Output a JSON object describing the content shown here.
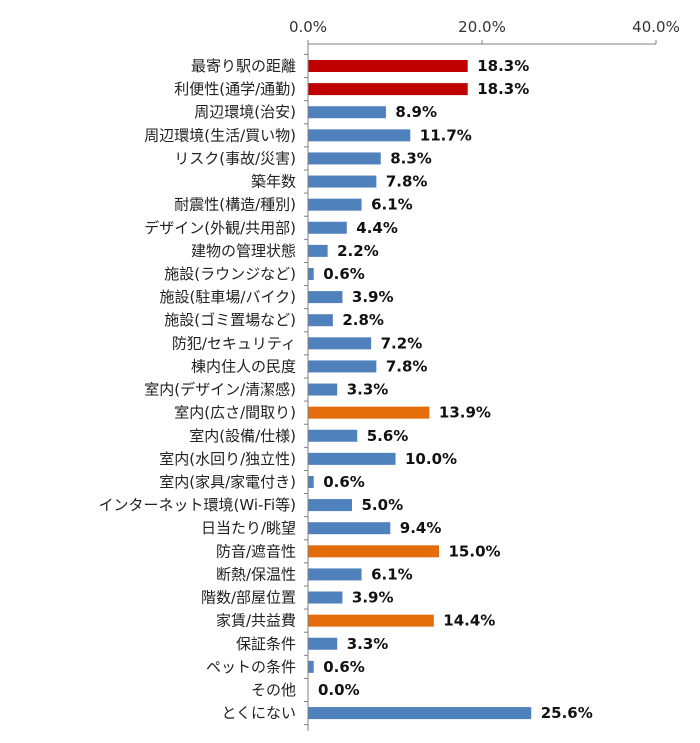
{
  "chart_data": {
    "type": "bar",
    "orientation": "horizontal",
    "title": "",
    "xlabel": "",
    "ylabel": "",
    "xlim": [
      0,
      40
    ],
    "x_ticks": [
      "0.0%",
      "20.0%",
      "40.0%"
    ],
    "x_tick_values": [
      0,
      20,
      40
    ],
    "x_axis_position": "top",
    "grid": false,
    "legend": "none",
    "colors": {
      "red": "#c00000",
      "orange": "#e46c0a",
      "blue": "#4f81bd",
      "axis": "#808080"
    },
    "categories": [
      "最寄り駅の距離",
      "利便性(通学/通勤)",
      "周辺環境(治安)",
      "周辺環境(生活/買い物)",
      "リスク(事故/災害)",
      "築年数",
      "耐震性(構造/種別)",
      "デザイン(外観/共用部)",
      "建物の管理状態",
      "施設(ラウンジなど)",
      "施設(駐車場/バイク)",
      "施設(ゴミ置場など)",
      "防犯/セキュリティ",
      "棟内住人の民度",
      "室内(デザイン/清潔感)",
      "室内(広さ/間取り)",
      "室内(設備/仕様)",
      "室内(水回り/独立性)",
      "室内(家具/家電付き)",
      "インターネット環境(Wi-Fi等)",
      "日当たり/眺望",
      "防音/遮音性",
      "断熱/保温性",
      "階数/部屋位置",
      "家賃/共益費",
      "保証条件",
      "ペットの条件",
      "その他",
      "とくにない"
    ],
    "values": [
      18.3,
      18.3,
      8.9,
      11.7,
      8.3,
      7.8,
      6.1,
      4.4,
      2.2,
      0.6,
      3.9,
      2.8,
      7.2,
      7.8,
      3.3,
      13.9,
      5.6,
      10.0,
      0.6,
      5.0,
      9.4,
      15.0,
      6.1,
      3.9,
      14.4,
      3.3,
      0.6,
      0.0,
      25.6
    ],
    "value_labels": [
      "18.3%",
      "18.3%",
      "8.9%",
      "11.7%",
      "8.3%",
      "7.8%",
      "6.1%",
      "4.4%",
      "2.2%",
      "0.6%",
      "3.9%",
      "2.8%",
      "7.2%",
      "7.8%",
      "3.3%",
      "13.9%",
      "5.6%",
      "10.0%",
      "0.6%",
      "5.0%",
      "9.4%",
      "15.0%",
      "6.1%",
      "3.9%",
      "14.4%",
      "3.3%",
      "0.6%",
      "0.0%",
      "25.6%"
    ],
    "bar_colors": [
      "red",
      "red",
      "blue",
      "blue",
      "blue",
      "blue",
      "blue",
      "blue",
      "blue",
      "blue",
      "blue",
      "blue",
      "blue",
      "blue",
      "blue",
      "orange",
      "blue",
      "blue",
      "blue",
      "blue",
      "blue",
      "orange",
      "blue",
      "blue",
      "orange",
      "blue",
      "blue",
      "blue",
      "blue"
    ]
  }
}
